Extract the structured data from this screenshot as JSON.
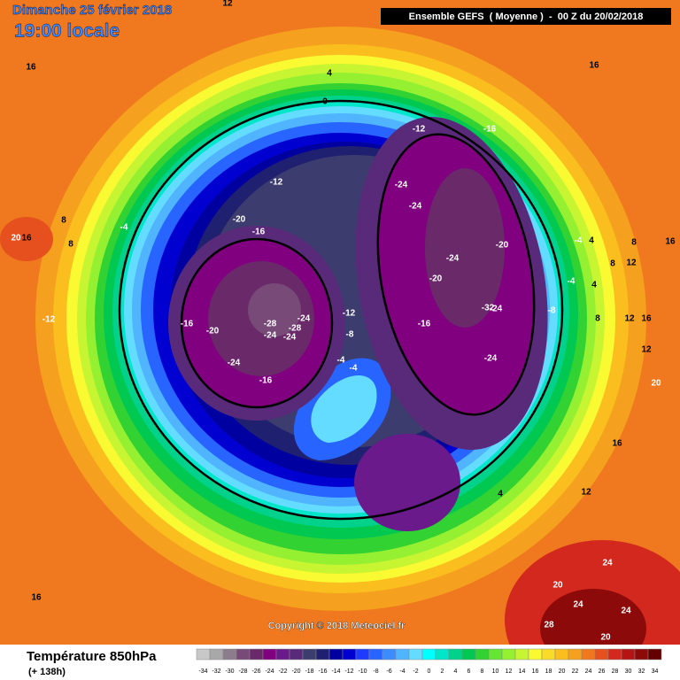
{
  "header": {
    "date": "Dimanche 25 février 2018",
    "time": "19:00 locale",
    "model": "Ensemble GEFS  ( Moyenne )  -  00 Z du 20/02/2018"
  },
  "copyright": "Copyright © 2018 Meteociel.fr",
  "footer": {
    "title": "Température 850hPa",
    "lead": "(+ 138h)"
  },
  "legend": {
    "ticks": [
      -34,
      -32,
      -30,
      -28,
      -26,
      -24,
      -22,
      -20,
      -18,
      -16,
      -14,
      -12,
      -10,
      -8,
      -6,
      -4,
      -2,
      0,
      2,
      4,
      6,
      8,
      10,
      12,
      14,
      16,
      18,
      20,
      22,
      24,
      26,
      28,
      30,
      32,
      34
    ],
    "colors": [
      "#c8c8c8",
      "#a8a8a8",
      "#8c7c8c",
      "#784a78",
      "#6a2a6a",
      "#800080",
      "#6a1a8a",
      "#5a2a7a",
      "#3c3c6e",
      "#202070",
      "#0000a0",
      "#0000d0",
      "#1e3cff",
      "#2864ff",
      "#3c8cff",
      "#50b4ff",
      "#64dcff",
      "#00ffff",
      "#00e6c8",
      "#00d28c",
      "#00c850",
      "#32d232",
      "#64e632",
      "#96f032",
      "#c8f532",
      "#fafa32",
      "#fadc28",
      "#fabe1e",
      "#f5a01e",
      "#f0781e",
      "#e6501e",
      "#d2281e",
      "#b41414",
      "#8c0a0a",
      "#640000"
    ]
  },
  "contour_labels": [
    12,
    16,
    4,
    16,
    0,
    -12,
    -16,
    -12,
    -24,
    -20,
    -16,
    -24,
    -4,
    8,
    8,
    16,
    20,
    -20,
    -24,
    -20,
    -4,
    4,
    8,
    16,
    8,
    12,
    -4,
    4,
    -12,
    -16,
    -20,
    -28,
    -24,
    -12,
    -16,
    -32,
    -24,
    -8,
    8,
    12,
    16,
    -8,
    -24,
    -24,
    -28,
    -4,
    -4,
    -24,
    -16,
    -24,
    12,
    20,
    16,
    12,
    4,
    24,
    20,
    24,
    24,
    28,
    20,
    16
  ]
}
